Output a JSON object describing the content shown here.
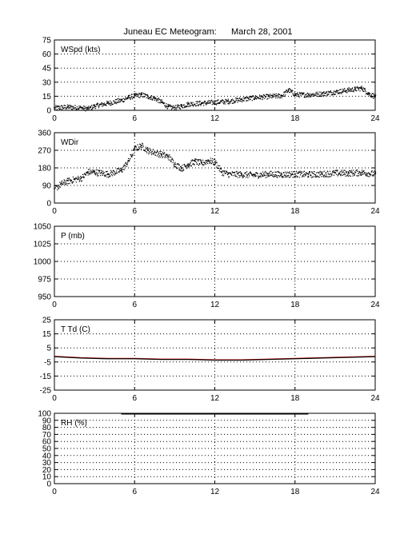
{
  "title": "Juneau EC Meteogram:      March 28, 2001",
  "chart_data": [
    {
      "id": "wspd",
      "type": "scatter",
      "label": "WSpd (kts)",
      "xlim": [
        0,
        24
      ],
      "xticks": [
        0,
        6,
        12,
        18,
        24
      ],
      "ylim": [
        0,
        75
      ],
      "yticks": [
        0,
        15,
        30,
        45,
        60,
        75
      ],
      "grid": true,
      "series": [
        {
          "color": "#000000",
          "x": [
            0,
            1,
            2,
            2.5,
            3,
            4,
            5,
            5.5,
            6,
            6.5,
            7,
            7.5,
            8,
            8.5,
            9,
            9.5,
            10,
            11,
            12,
            13,
            14,
            15,
            16,
            17,
            17.5,
            18,
            19,
            20,
            21,
            22,
            22.5,
            23,
            23.5,
            24
          ],
          "y": [
            3,
            4,
            3,
            2,
            5,
            8,
            11,
            14,
            16,
            17,
            15,
            13,
            9,
            4,
            3,
            5,
            7,
            8,
            9,
            10,
            12,
            14,
            15,
            16,
            22,
            17,
            17,
            18,
            20,
            22,
            23,
            24,
            18,
            15
          ]
        }
      ]
    },
    {
      "id": "wdir",
      "type": "scatter",
      "label": "WDir",
      "xlim": [
        0,
        24
      ],
      "xticks": [
        0,
        6,
        12,
        18,
        24
      ],
      "ylim": [
        0,
        360
      ],
      "yticks": [
        0,
        90,
        180,
        270,
        360
      ],
      "grid": true,
      "series": [
        {
          "color": "#000000",
          "x": [
            0,
            0.5,
            1,
            2,
            2.5,
            3,
            4,
            5,
            5.5,
            6,
            6.5,
            7,
            8,
            8.5,
            9,
            9.5,
            10,
            10.5,
            11,
            11.5,
            12,
            12.5,
            13,
            14,
            15,
            16,
            17,
            18,
            19,
            20,
            21,
            22,
            23,
            24
          ],
          "y": [
            75,
            100,
            115,
            130,
            160,
            160,
            150,
            170,
            215,
            280,
            295,
            270,
            250,
            240,
            200,
            180,
            200,
            215,
            205,
            220,
            210,
            160,
            150,
            148,
            145,
            150,
            148,
            150,
            148,
            150,
            155,
            155,
            158,
            150
          ]
        }
      ]
    },
    {
      "id": "pres",
      "type": "line",
      "label": "P (mb)",
      "xlim": [
        0,
        24
      ],
      "xticks": [
        0,
        6,
        12,
        18,
        24
      ],
      "ylim": [
        950,
        1050
      ],
      "yticks": [
        950,
        975,
        1000,
        1025,
        1050
      ],
      "grid": true,
      "series": []
    },
    {
      "id": "ttd",
      "type": "line",
      "label": "T Td (C)",
      "xlim": [
        0,
        24
      ],
      "xticks": [
        0,
        6,
        12,
        18,
        24
      ],
      "ylim": [
        -25,
        25
      ],
      "yticks": [
        -25,
        -15,
        -5,
        5,
        15,
        25
      ],
      "grid": true,
      "series": [
        {
          "color": "#ff0000",
          "x": [
            0,
            2,
            4,
            6,
            8,
            10,
            12,
            14,
            16,
            18,
            20,
            22,
            24
          ],
          "y": [
            -1,
            -2,
            -2.5,
            -2.5,
            -3,
            -3,
            -3.5,
            -3.5,
            -3,
            -2.5,
            -2,
            -1.5,
            -1
          ]
        },
        {
          "color": "#000000",
          "x": [
            0,
            2,
            4,
            6,
            8,
            10,
            12,
            14,
            16,
            18,
            20,
            22,
            24
          ],
          "y": [
            -1.2,
            -2.2,
            -2.7,
            -2.7,
            -3.2,
            -3.2,
            -3.7,
            -3.7,
            -3.2,
            -2.7,
            -2.2,
            -1.7,
            -1.2
          ]
        }
      ]
    },
    {
      "id": "rh",
      "type": "line",
      "label": "RH (%)",
      "xlim": [
        0,
        24
      ],
      "xticks": [
        0,
        6,
        12,
        18,
        24
      ],
      "ylim": [
        0,
        100
      ],
      "yticks": [
        0,
        10,
        20,
        30,
        40,
        50,
        60,
        70,
        80,
        90,
        100
      ],
      "grid": true,
      "series": [
        {
          "color": "#000000",
          "x": [
            5,
            6,
            8,
            10,
            12,
            14,
            16,
            18,
            19
          ],
          "y": [
            99.5,
            99.5,
            99.5,
            99.5,
            99.5,
            99.5,
            99.5,
            99.5,
            99.5
          ]
        }
      ]
    }
  ]
}
